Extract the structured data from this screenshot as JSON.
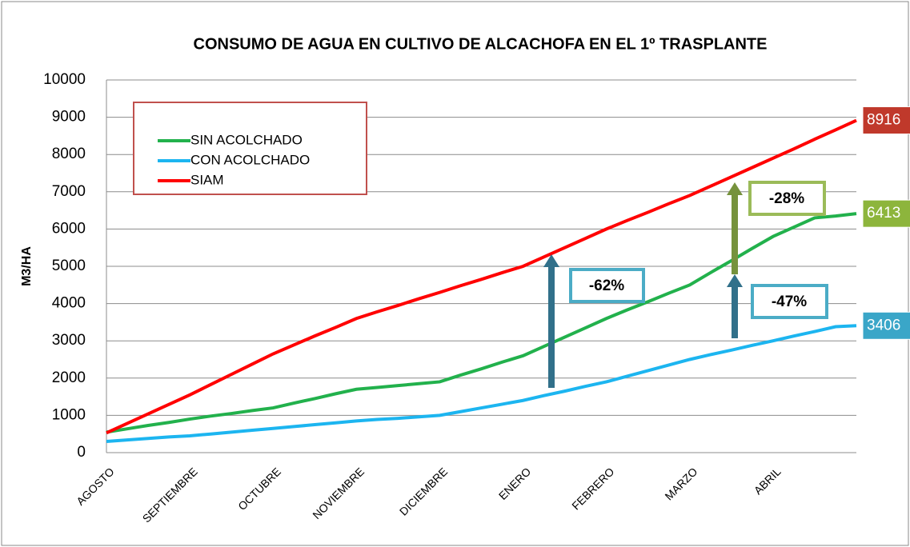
{
  "chart_data": {
    "type": "line",
    "title": "CONSUMO DE AGUA EN CULTIVO DE ALCACHOFA EN EL 1º TRASPLANTE",
    "y_label": "M3/HA",
    "categories": [
      "AGOSTO",
      null,
      null,
      null,
      "SEPTIEMBRE",
      null,
      null,
      null,
      "OCTUBRE",
      null,
      null,
      null,
      "NOVIEMBRE",
      null,
      null,
      null,
      "DICIEMBRE",
      null,
      null,
      null,
      "ENERO",
      null,
      null,
      null,
      "FEBRERO",
      null,
      null,
      null,
      "MARZO",
      null,
      null,
      null,
      "ABRIL",
      null,
      null,
      null,
      null
    ],
    "ylim": [
      0,
      10000
    ],
    "yticks": [
      0,
      1000,
      2000,
      3000,
      4000,
      5000,
      6000,
      7000,
      8000,
      9000,
      10000
    ],
    "grid": true,
    "legend": "upper left",
    "series": [
      {
        "name": "SIN ACOLCHADO",
        "color": "#22b14c",
        "label_color": "#8db53c",
        "values": [
          550,
          640,
          730,
          810,
          900,
          980,
          1050,
          1130,
          1200,
          1330,
          1450,
          1580,
          1700,
          1750,
          1800,
          1850,
          1900,
          2080,
          2250,
          2430,
          2600,
          2850,
          3100,
          3350,
          3600,
          3830,
          4050,
          4280,
          4500,
          4830,
          5150,
          5480,
          5800,
          6050,
          6300,
          6350,
          6413
        ]
      },
      {
        "name": "CON ACOLCHADO",
        "color": "#1cb5f0",
        "label_color": "#3aa6c8",
        "values": [
          300,
          340,
          380,
          420,
          450,
          500,
          550,
          600,
          650,
          700,
          750,
          800,
          850,
          890,
          920,
          960,
          1000,
          1100,
          1200,
          1300,
          1400,
          1530,
          1650,
          1780,
          1900,
          2050,
          2200,
          2350,
          2500,
          2630,
          2750,
          2880,
          3000,
          3130,
          3250,
          3380,
          3406
        ]
      },
      {
        "name": "SIAM",
        "color": "#ff0000",
        "label_color": "#c0392b",
        "values": [
          530,
          785,
          1040,
          1295,
          1550,
          1825,
          2100,
          2375,
          2650,
          2890,
          3130,
          3360,
          3600,
          3780,
          3950,
          4130,
          4300,
          4480,
          4650,
          4830,
          5000,
          5250,
          5500,
          5750,
          6000,
          6230,
          6450,
          6680,
          6900,
          7150,
          7400,
          7650,
          7900,
          8150,
          8410,
          8660,
          8916
        ]
      }
    ],
    "annotations": [
      {
        "text": "-62%"
      },
      {
        "text": "-47%"
      },
      {
        "text": "-28%"
      }
    ]
  }
}
